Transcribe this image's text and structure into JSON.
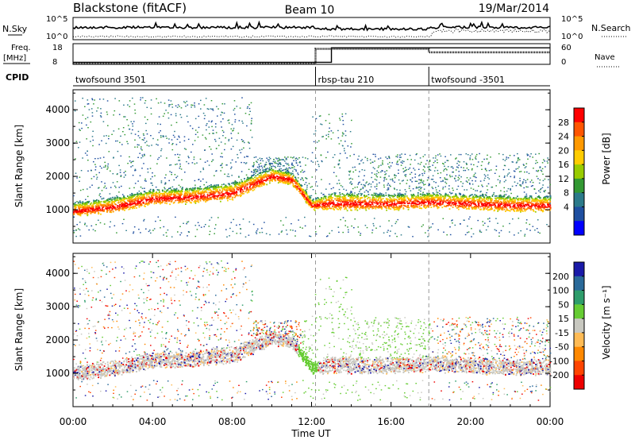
{
  "header": {
    "site": "Blackstone (fitACF)",
    "beam": "Beam 10",
    "date": "19/Mar/2014"
  },
  "top_panels": {
    "nsky_label": "N.Sky",
    "nsky_ticks": [
      "10^5",
      "10^0"
    ],
    "nsearch_label": "N.Search",
    "nsearch_ticks": [
      "10^5",
      "10^0"
    ],
    "freq_label": "Freq.",
    "freq_unit": "[MHz]",
    "freq_ticks": [
      "18",
      "8"
    ],
    "nave_label": "Nave",
    "nave_ticks": [
      "60",
      "0"
    ],
    "cpid_label": "CPID",
    "cpid_segments": [
      {
        "name": "twofsound 3501",
        "start_h": 0,
        "end_h": 12.2
      },
      {
        "name": "rbsp-tau 210",
        "start_h": 12.2,
        "end_h": 17.9
      },
      {
        "name": "twofsound -3501",
        "start_h": 17.9,
        "end_h": 24
      }
    ],
    "frequency_mhz": [
      {
        "start_h": 0,
        "end_h": 13.0,
        "value": 9
      },
      {
        "start_h": 13.0,
        "end_h": 24,
        "value": 16
      }
    ],
    "nave": [
      {
        "start_h": 0,
        "end_h": 12.2,
        "value": 2
      },
      {
        "start_h": 12.2,
        "end_h": 17.9,
        "value": 45
      },
      {
        "start_h": 17.9,
        "end_h": 24,
        "value": 35
      }
    ]
  },
  "power_colorbar": {
    "label": "Power [dB]",
    "ticks": [
      "28",
      "24",
      "20",
      "16",
      "12",
      "8",
      "4"
    ],
    "colors": [
      "#ff0000",
      "#ff5500",
      "#ff9900",
      "#ffcc00",
      "#99cc00",
      "#339933",
      "#2c7a8a",
      "#1f4fa0",
      "#0000ff"
    ]
  },
  "velocity_colorbar": {
    "label": "Velocity [m s⁻¹]",
    "ticks": [
      "200",
      "100",
      "50",
      "15",
      "-15",
      "-50",
      "-100",
      "-200"
    ],
    "colors": [
      "#1a1aa8",
      "#2a6a9a",
      "#2e9d6b",
      "#66cc33",
      "#c8c8c0",
      "#ffbb55",
      "#ff8800",
      "#ff4400",
      "#ee0000"
    ]
  },
  "chart_data": [
    {
      "type": "heatmap",
      "title": "Power",
      "xlabel": "",
      "ylabel": "Slant Range [km]",
      "xlim": [
        0,
        24
      ],
      "ylim": [
        0,
        4600
      ],
      "yticks": [
        "4000",
        "3000",
        "2000",
        "1000"
      ],
      "ytick_values": [
        4000,
        3000,
        2000,
        1000
      ],
      "main_band_km": {
        "hours": [
          0,
          2,
          4,
          6,
          8,
          10,
          11,
          12,
          13,
          16,
          18,
          20,
          22,
          24
        ],
        "lower": [
          850,
          950,
          1200,
          1250,
          1350,
          1900,
          1800,
          1050,
          1050,
          1050,
          1100,
          1050,
          1000,
          1000
        ],
        "upper": [
          1200,
          1350,
          1600,
          1650,
          1800,
          2250,
          2100,
          1300,
          1500,
          1450,
          1500,
          1450,
          1400,
          1400
        ]
      }
    },
    {
      "type": "heatmap",
      "title": "Velocity",
      "xlabel": "Time UT",
      "ylabel": "Slant Range [km]",
      "xlim": [
        0,
        24
      ],
      "ylim": [
        0,
        4600
      ],
      "xticks": [
        "00:00",
        "04:00",
        "08:00",
        "12:00",
        "16:00",
        "20:00",
        "00:00"
      ],
      "xtick_values": [
        0,
        4,
        8,
        12,
        16,
        20,
        24
      ],
      "yticks": [
        "4000",
        "3000",
        "2000",
        "1000"
      ],
      "ytick_values": [
        4000,
        3000,
        2000,
        1000
      ]
    }
  ]
}
